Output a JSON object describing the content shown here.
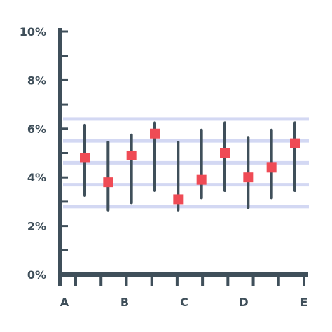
{
  "chart_data": {
    "type": "error-bar",
    "title": "",
    "xlabel": "",
    "ylabel": "",
    "y_ticks": [
      "0%",
      "2%",
      "4%",
      "6%",
      "8%",
      "10%"
    ],
    "x_ticks": [
      "A",
      "B",
      "C",
      "D",
      "E"
    ],
    "ylim": [
      0,
      10
    ],
    "grid": false,
    "reference_bands": [
      2.8,
      3.7,
      4.6,
      5.5,
      6.4
    ],
    "points": [
      {
        "value": 4.8,
        "low": 3.2,
        "high": 6.2
      },
      {
        "value": 3.8,
        "low": 2.6,
        "high": 5.5
      },
      {
        "value": 4.9,
        "low": 2.9,
        "high": 5.8
      },
      {
        "value": 5.8,
        "low": 3.4,
        "high": 6.3
      },
      {
        "value": 3.1,
        "low": 2.6,
        "high": 5.5
      },
      {
        "value": 3.9,
        "low": 3.1,
        "high": 6.0
      },
      {
        "value": 5.0,
        "low": 3.4,
        "high": 6.3
      },
      {
        "value": 4.0,
        "low": 2.7,
        "high": 5.7
      },
      {
        "value": 4.4,
        "low": 3.1,
        "high": 6.0
      },
      {
        "value": 5.4,
        "low": 3.4,
        "high": 6.3
      }
    ],
    "colors": {
      "axis": "#3f4f5a",
      "marker": "#ef4b55",
      "band": "#d3d8f3",
      "whisker": "#3f4f5a"
    }
  }
}
